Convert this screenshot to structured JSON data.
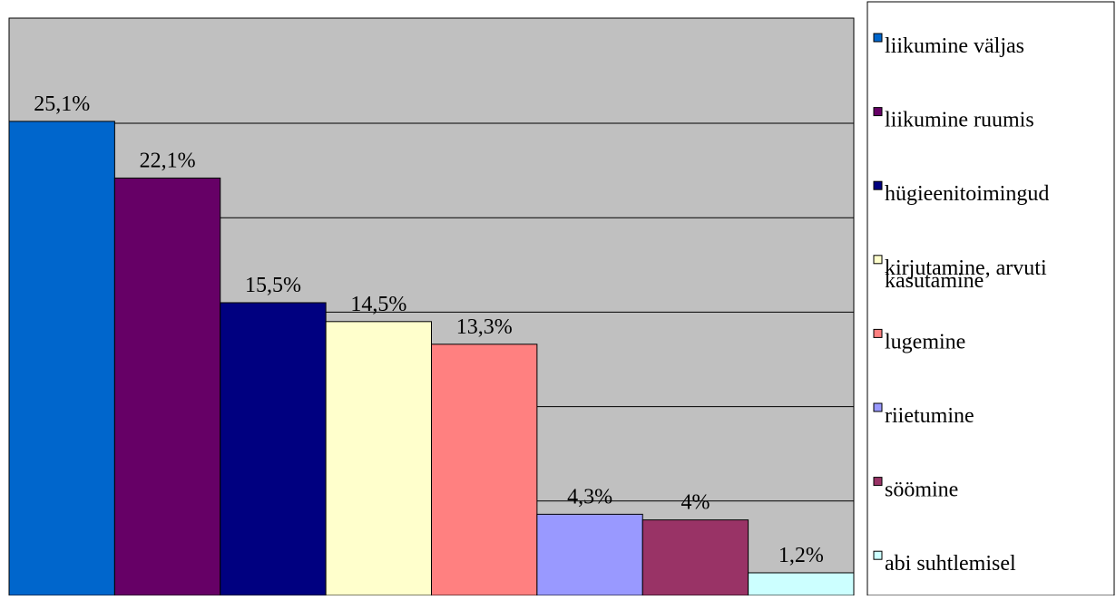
{
  "chart_data": {
    "type": "bar",
    "categories": [
      "liikumine väljas",
      "liikumine ruumis",
      "hügieenitoimingud",
      "kirjutamine, arvuti kasutamine",
      "lugemine",
      "riietumine",
      "söömine",
      "abi suhtlemisel"
    ],
    "values": [
      25.1,
      22.1,
      15.5,
      14.5,
      13.3,
      4.3,
      4.0,
      1.2
    ],
    "data_labels": [
      "25,1%",
      "22,1%",
      "15,5%",
      "14,5%",
      "13,3%",
      "4,3%",
      "4%",
      "1,2%"
    ],
    "colors": [
      "#0066cc",
      "#660066",
      "#000080",
      "#ffffcc",
      "#ff8080",
      "#9999ff",
      "#993366",
      "#ccffff"
    ],
    "ylim": [
      0,
      25
    ],
    "grid": true,
    "plot_background": "#c0c0c0",
    "legend": {
      "position": "right",
      "entries": [
        [
          "liikumine väljas"
        ],
        [
          "liikumine ruumis"
        ],
        [
          "hügieenitoimingud"
        ],
        [
          "kirjutamine, arvuti",
          "kasutamine"
        ],
        [
          "lugemine"
        ],
        [
          "riietumine"
        ],
        [
          "söömine"
        ],
        [
          "abi suhtlemisel"
        ]
      ]
    },
    "title": "",
    "xlabel": "",
    "ylabel": ""
  }
}
